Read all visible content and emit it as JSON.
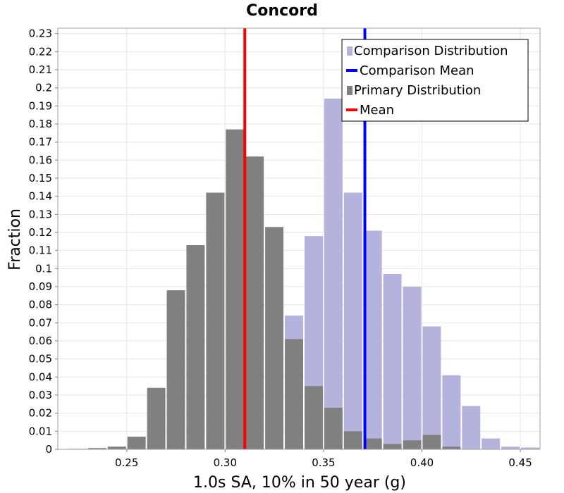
{
  "chart_data": {
    "type": "bar",
    "title": "Concord",
    "xlabel": "1.0s SA, 10% in 50 year (g)",
    "ylabel": "Fraction",
    "xlim": [
      0.215,
      0.46
    ],
    "ylim": [
      0,
      0.233
    ],
    "bin_width": 0.01,
    "x_ticks": [
      "0.25",
      "0.30",
      "0.35",
      "0.40",
      "0.45"
    ],
    "y_ticks": [
      "0",
      "0.01",
      "0.02",
      "0.03",
      "0.04",
      "0.05",
      "0.06",
      "0.07",
      "0.08",
      "0.09",
      "0.1",
      "0.11",
      "0.12",
      "0.13",
      "0.14",
      "0.15",
      "0.16",
      "0.17",
      "0.18",
      "0.19",
      "0.2",
      "0.21",
      "0.22",
      "0.23"
    ],
    "series": [
      {
        "name": "Comparison Distribution",
        "color": "#b3b3de",
        "bin_centers": [
          0.335,
          0.345,
          0.355,
          0.365,
          0.375,
          0.385,
          0.395,
          0.405,
          0.415,
          0.425,
          0.435,
          0.445,
          0.455
        ],
        "values": [
          0.074,
          0.118,
          0.194,
          0.142,
          0.121,
          0.097,
          0.09,
          0.068,
          0.041,
          0.024,
          0.006,
          0.0015,
          0.001
        ]
      },
      {
        "name": "Primary Distribution",
        "color": "#808080",
        "bin_centers": [
          0.225,
          0.235,
          0.245,
          0.255,
          0.265,
          0.275,
          0.285,
          0.295,
          0.305,
          0.315,
          0.325,
          0.335,
          0.345,
          0.355,
          0.365,
          0.375,
          0.385,
          0.395,
          0.405,
          0.415
        ],
        "values": [
          0.0003,
          0.0007,
          0.0015,
          0.007,
          0.034,
          0.088,
          0.113,
          0.142,
          0.177,
          0.162,
          0.123,
          0.061,
          0.035,
          0.023,
          0.01,
          0.006,
          0.003,
          0.005,
          0.008,
          0.0015
        ]
      }
    ],
    "lines": [
      {
        "name": "Comparison Mean",
        "color": "#0000ff",
        "x": 0.371
      },
      {
        "name": "Mean",
        "color": "#ff0000",
        "x": 0.31
      }
    ],
    "legend": {
      "position": "top-right",
      "entries": [
        {
          "label": "Comparison Distribution",
          "kind": "box",
          "color": "#b3b3de"
        },
        {
          "label": "Comparison Mean",
          "kind": "line",
          "color": "#0000ff"
        },
        {
          "label": "Primary Distribution",
          "kind": "box",
          "color": "#808080"
        },
        {
          "label": "Mean",
          "kind": "line",
          "color": "#ff0000"
        }
      ]
    },
    "grid": true
  }
}
